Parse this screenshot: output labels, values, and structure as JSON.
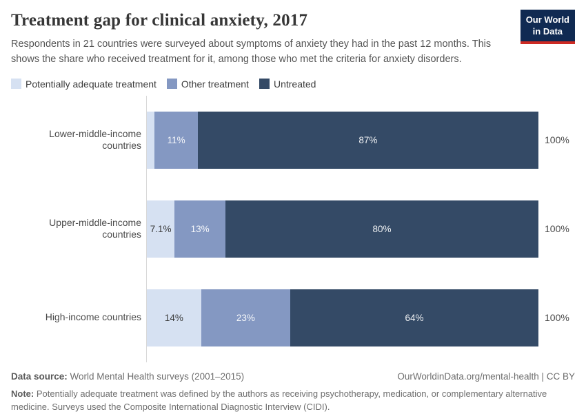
{
  "header": {
    "title": "Treatment gap for clinical anxiety, 2017",
    "subtitle": "Respondents in 21 countries were surveyed about symptoms of anxiety they had in the past 12 months. This shows the share who received treatment for it, among those who met the criteria for anxiety disorders.",
    "logo": {
      "line1": "Our World",
      "line2": "in Data",
      "bg_color": "#102a52",
      "accent_color": "#cd2a23"
    }
  },
  "legend": [
    {
      "label": "Potentially adequate treatment",
      "color": "#d6e1f2"
    },
    {
      "label": "Other treatment",
      "color": "#8498c2"
    },
    {
      "label": "Untreated",
      "color": "#344a66"
    }
  ],
  "chart_data": {
    "type": "bar",
    "orientation": "horizontal",
    "stacked": true,
    "grid": false,
    "legend_position": "top",
    "xlim": [
      0,
      100
    ],
    "categories": [
      "Lower-middle-income countries",
      "Upper-middle-income countries",
      "High-income countries"
    ],
    "series": [
      {
        "name": "Potentially adequate treatment",
        "color": "#d6e1f2",
        "label_color": "#3a3a3a",
        "values": [
          2,
          7.1,
          14
        ],
        "labels": [
          "",
          "7.1%",
          "14%"
        ]
      },
      {
        "name": "Other treatment",
        "color": "#8498c2",
        "label_color": "rgba(255,255,255,0.93)",
        "values": [
          11,
          13,
          23
        ],
        "labels": [
          "11%",
          "13%",
          "23%"
        ]
      },
      {
        "name": "Untreated",
        "color": "#344a66",
        "label_color": "rgba(255,255,255,0.93)",
        "values": [
          87,
          80,
          64
        ],
        "labels": [
          "87%",
          "80%",
          "64%"
        ]
      }
    ],
    "totals": [
      "100%",
      "100%",
      "100%"
    ]
  },
  "footer": {
    "source_label": "Data source:",
    "source_text": " World Mental Health surveys (2001–2015)",
    "attribution": "OurWorldinData.org/mental-health | CC BY",
    "note_label": "Note:",
    "note_text": " Potentially adequate treatment was defined by the authors as receiving psychotherapy, medication, or complementary alternative medicine. Surveys used the Composite International Diagnostic Interview (CIDI)."
  }
}
